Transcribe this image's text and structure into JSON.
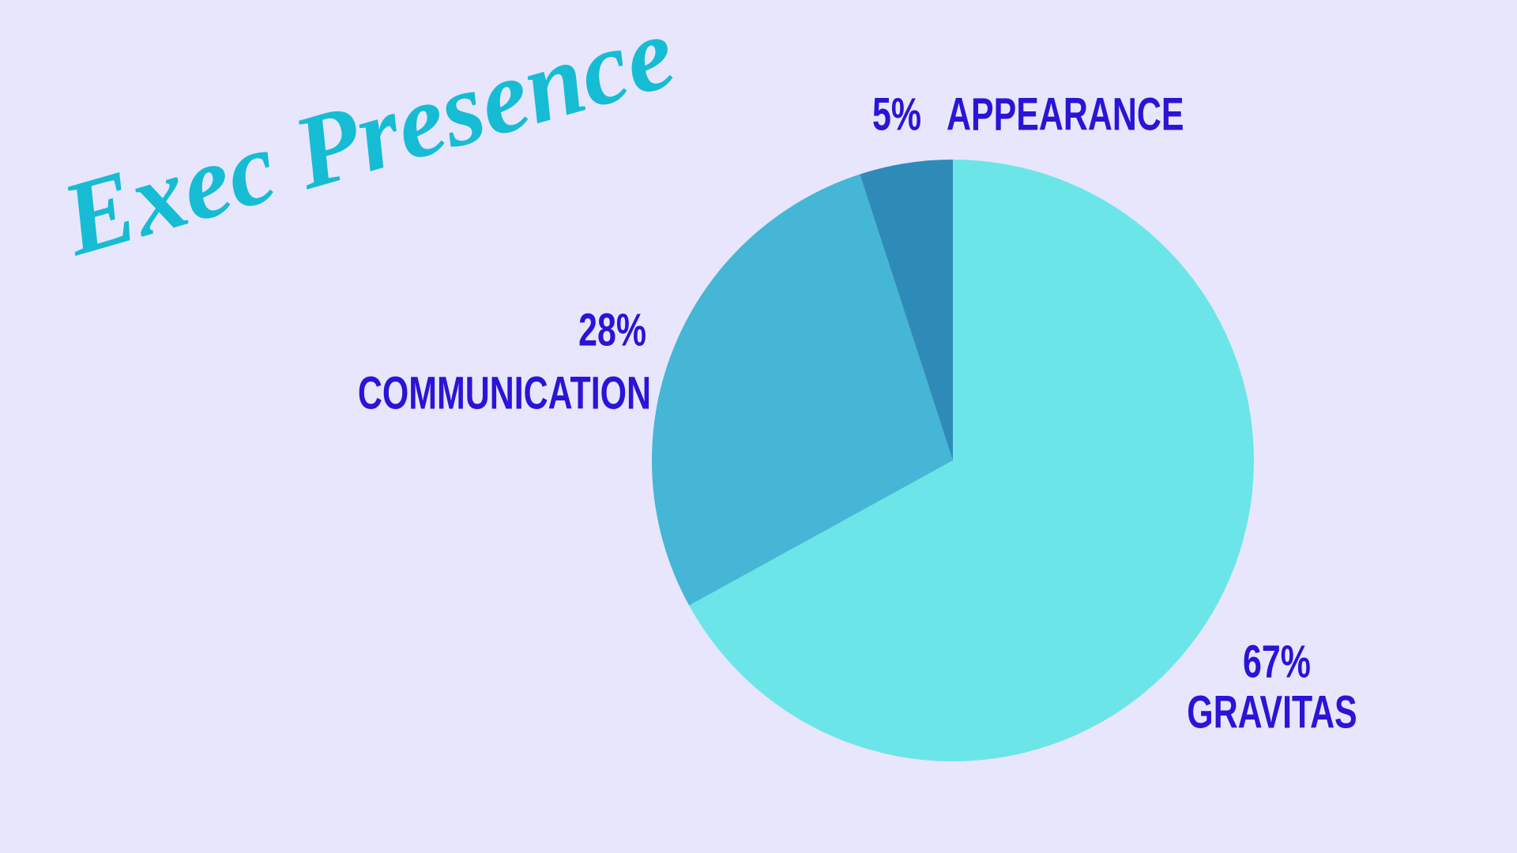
{
  "chart_data": {
    "type": "pie",
    "title": "Exec Presence",
    "categories": [
      "GRAVITAS",
      "COMMUNICATION",
      "APPEARANCE"
    ],
    "values": [
      67,
      28,
      5
    ],
    "value_labels": [
      "67%",
      "28%",
      "5%"
    ],
    "colors": [
      "#6ce5e8",
      "#45b6d5",
      "#2e8bb8"
    ]
  }
}
